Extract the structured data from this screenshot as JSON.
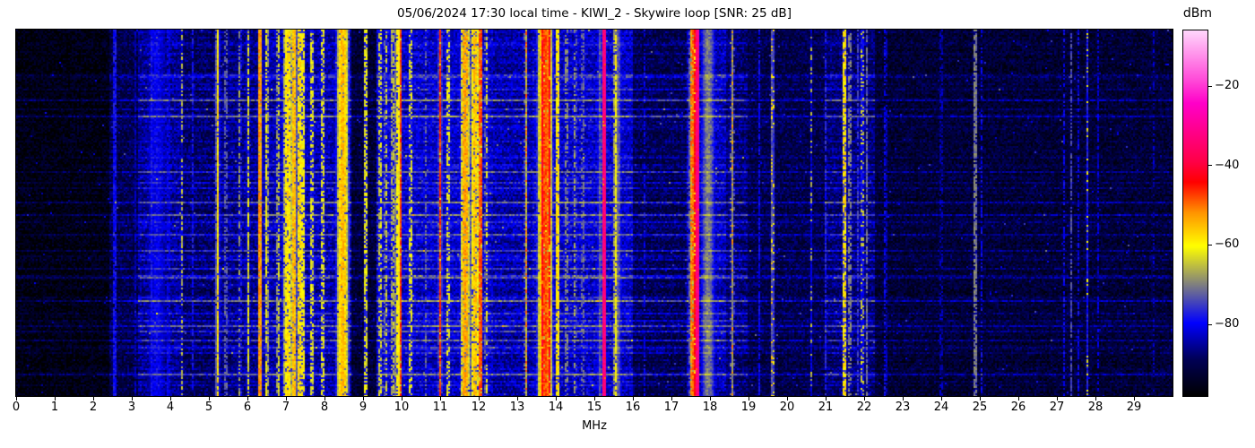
{
  "figure": {
    "title": "05/06/2024 17:30 local time - KIWI_2 - Skywire loop [SNR: 25 dB]",
    "background": "#ffffff"
  },
  "chart_data": {
    "type": "heatmap",
    "subtype": "radio-spectrogram-waterfall",
    "title": "05/06/2024 17:30 local time - KIWI_2 - Skywire loop [SNR: 25 dB]",
    "xlabel": "MHz",
    "x_range": [
      0,
      30
    ],
    "x_ticks": [
      0,
      1,
      2,
      3,
      4,
      5,
      6,
      7,
      8,
      9,
      10,
      11,
      12,
      13,
      14,
      15,
      16,
      17,
      18,
      19,
      20,
      21,
      22,
      23,
      24,
      25,
      26,
      27,
      28,
      29
    ],
    "grid": false,
    "legend": false,
    "colorbar": {
      "label": "dBm",
      "ticks": [
        -20,
        -40,
        -60,
        -80
      ],
      "tick_labels": [
        "−20",
        "−40",
        "−60",
        "−80"
      ],
      "vmin": -98,
      "vmax": -6,
      "colormap_stops": [
        [
          0.0,
          "#000000"
        ],
        [
          0.1,
          "#000055"
        ],
        [
          0.2,
          "#0000ff"
        ],
        [
          0.41,
          "#ffff00"
        ],
        [
          0.5,
          "#ff9600"
        ],
        [
          0.585,
          "#ff0000"
        ],
        [
          0.64,
          "#ff0046"
        ],
        [
          0.8,
          "#ff00c8"
        ],
        [
          0.86,
          "#ff46d7"
        ],
        [
          1.0,
          "#ffd7fc"
        ]
      ]
    },
    "noise_floor_dbm": [
      [
        0.0,
        2.4,
        -96
      ],
      [
        2.4,
        3.15,
        -90
      ],
      [
        3.15,
        4.3,
        -85
      ],
      [
        4.3,
        5.1,
        -88
      ],
      [
        5.1,
        6.4,
        -86
      ],
      [
        6.4,
        8.7,
        -84
      ],
      [
        8.7,
        9.35,
        -92
      ],
      [
        9.35,
        12.35,
        -82
      ],
      [
        12.35,
        13.4,
        -84
      ],
      [
        13.4,
        16.0,
        -82
      ],
      [
        16.0,
        17.4,
        -89
      ],
      [
        17.4,
        18.4,
        -83
      ],
      [
        18.4,
        19.0,
        -87
      ],
      [
        19.0,
        21.0,
        -90
      ],
      [
        21.0,
        22.3,
        -87
      ],
      [
        22.3,
        30.0,
        -92
      ]
    ],
    "signal_bands": [
      {
        "f": 2.56,
        "w": 0.02,
        "level": -79,
        "duty": 0.9
      },
      {
        "f": 3.1,
        "w": 0.02,
        "level": -84,
        "duty": 0.8
      },
      {
        "f": 3.65,
        "w": 0.45,
        "level": -80,
        "soft": true
      },
      {
        "f": 3.52,
        "w": 0.02,
        "level": -79,
        "duty": 0.9
      },
      {
        "f": 3.95,
        "w": 0.02,
        "level": -81,
        "duty": 0.8
      },
      {
        "f": 4.3,
        "w": 0.02,
        "level": -66,
        "duty": 0.55
      },
      {
        "f": 4.58,
        "w": 0.02,
        "level": -79,
        "duty": 0.7
      },
      {
        "f": 5.23,
        "w": 0.025,
        "level": -58,
        "duty": 0.92
      },
      {
        "f": 5.44,
        "w": 0.02,
        "level": -73,
        "duty": 0.6
      },
      {
        "f": 5.8,
        "w": 0.02,
        "level": -68,
        "duty": 0.5
      },
      {
        "f": 6.02,
        "w": 0.02,
        "level": -62,
        "duty": 0.7
      },
      {
        "f": 6.33,
        "w": 0.035,
        "level": -52,
        "duty": 0.9
      },
      {
        "f": 6.5,
        "w": 0.02,
        "level": -61,
        "duty": 0.7
      },
      {
        "f": 6.8,
        "w": 0.02,
        "level": -64,
        "duty": 0.6
      },
      {
        "f": 7.05,
        "w": 0.12,
        "level": -58,
        "duty": 0.85
      },
      {
        "f": 7.21,
        "w": 0.05,
        "level": -55,
        "duty": 0.9
      },
      {
        "f": 7.35,
        "w": 0.03,
        "level": -58,
        "duty": 0.8
      },
      {
        "f": 7.44,
        "w": 0.02,
        "level": -60,
        "duty": 0.7
      },
      {
        "f": 7.67,
        "w": 0.02,
        "level": -62,
        "duty": 0.6
      },
      {
        "f": 7.95,
        "w": 0.02,
        "level": -62,
        "duty": 0.6
      },
      {
        "f": 8.47,
        "w": 0.14,
        "level": -55,
        "duty": 0.95
      },
      {
        "f": 9.07,
        "w": 0.02,
        "level": -62,
        "duty": 0.6
      },
      {
        "f": 9.45,
        "w": 0.03,
        "level": -63,
        "duty": 0.5
      },
      {
        "f": 9.6,
        "w": 0.03,
        "level": -64,
        "duty": 0.5
      },
      {
        "f": 9.78,
        "w": 0.05,
        "level": -66,
        "duty": 0.6
      },
      {
        "f": 9.9,
        "w": 0.06,
        "level": -60,
        "duty": 0.7
      },
      {
        "f": 9.97,
        "w": 0.02,
        "level": -47,
        "duty": 0.9
      },
      {
        "f": 10.23,
        "w": 0.02,
        "level": -62,
        "duty": 0.5
      },
      {
        "f": 10.63,
        "w": 0.02,
        "level": -72,
        "duty": 0.5
      },
      {
        "f": 11.0,
        "w": 0.02,
        "level": -47,
        "duty": 0.92
      },
      {
        "f": 11.21,
        "w": 0.02,
        "level": -62,
        "duty": 0.5
      },
      {
        "f": 11.65,
        "w": 0.1,
        "level": -53,
        "duty": 0.9
      },
      {
        "f": 11.9,
        "w": 0.1,
        "level": -56,
        "duty": 0.85
      },
      {
        "f": 12.05,
        "w": 0.02,
        "level": -48,
        "duty": 0.9
      },
      {
        "f": 12.2,
        "w": 0.02,
        "level": -62,
        "duty": 0.5
      },
      {
        "f": 13.23,
        "w": 0.02,
        "level": -50,
        "duty": 0.35
      },
      {
        "f": 13.72,
        "w": 0.16,
        "level": -48,
        "duty": 0.95
      },
      {
        "f": 13.65,
        "w": 0.02,
        "level": -42,
        "duty": 0.9
      },
      {
        "f": 13.84,
        "w": 0.02,
        "level": -43,
        "duty": 0.9
      },
      {
        "f": 14.05,
        "w": 0.03,
        "level": -58,
        "duty": 0.8
      },
      {
        "f": 14.28,
        "w": 0.02,
        "level": -70,
        "duty": 0.6
      },
      {
        "f": 14.5,
        "w": 0.02,
        "level": -68,
        "duty": 0.5
      },
      {
        "f": 14.7,
        "w": 0.02,
        "level": -72,
        "duty": 0.5
      },
      {
        "f": 15.15,
        "w": 0.1,
        "level": -73,
        "soft": true
      },
      {
        "f": 15.26,
        "w": 0.02,
        "level": -33,
        "duty": 0.97
      },
      {
        "f": 15.55,
        "w": 0.025,
        "level": -60,
        "duty": 0.8
      },
      {
        "f": 15.6,
        "w": 0.15,
        "level": -72,
        "soft": true
      },
      {
        "f": 16.3,
        "w": 0.02,
        "level": -80,
        "duty": 0.5
      },
      {
        "f": 17.55,
        "w": 0.06,
        "level": -50,
        "duty": 0.8
      },
      {
        "f": 17.62,
        "w": 0.02,
        "level": -44,
        "duty": 0.85
      },
      {
        "f": 17.68,
        "w": 0.02,
        "level": -32,
        "duty": 0.97
      },
      {
        "f": 17.95,
        "w": 0.25,
        "level": -70,
        "soft": true
      },
      {
        "f": 18.58,
        "w": 0.025,
        "level": -53,
        "duty": 0.2
      },
      {
        "f": 19.28,
        "w": 0.02,
        "level": -80,
        "duty": 0.8
      },
      {
        "f": 19.62,
        "w": 0.02,
        "level": -57,
        "duty": 0.18
      },
      {
        "f": 20.63,
        "w": 0.02,
        "level": -66,
        "duty": 0.25
      },
      {
        "f": 21.0,
        "w": 0.02,
        "level": -77,
        "duty": 0.7
      },
      {
        "f": 21.49,
        "w": 0.04,
        "level": -58,
        "duty": 0.65
      },
      {
        "f": 21.63,
        "w": 0.02,
        "level": -70,
        "duty": 0.6
      },
      {
        "f": 21.84,
        "w": 0.03,
        "level": -76,
        "duty": 0.7
      },
      {
        "f": 21.95,
        "w": 0.02,
        "level": -64,
        "duty": 0.3
      },
      {
        "f": 22.07,
        "w": 0.015,
        "level": -72,
        "duty": 0.8
      },
      {
        "f": 22.55,
        "w": 0.02,
        "level": -80,
        "duty": 0.6
      },
      {
        "f": 24.0,
        "w": 0.02,
        "level": -84,
        "duty": 0.5
      },
      {
        "f": 24.88,
        "w": 0.02,
        "level": -70,
        "duty": 0.8
      },
      {
        "f": 25.05,
        "w": 0.02,
        "level": -80,
        "duty": 0.5
      },
      {
        "f": 27.19,
        "w": 0.02,
        "level": -80,
        "duty": 0.6
      },
      {
        "f": 27.37,
        "w": 0.02,
        "level": -74,
        "duty": 0.7
      },
      {
        "f": 27.56,
        "w": 0.02,
        "level": -80,
        "duty": 0.6
      },
      {
        "f": 27.79,
        "w": 0.02,
        "level": -62,
        "duty": 0.15
      },
      {
        "f": 28.07,
        "w": 0.02,
        "level": -82,
        "duty": 0.6
      },
      {
        "f": 29.5,
        "w": 0.02,
        "level": -83,
        "duty": 0.5
      }
    ],
    "texture": {
      "rows": 205,
      "cols": 645,
      "row_streak_chance": 0.09,
      "row_streak_gain_db": [
        5,
        13
      ],
      "row_jitter_db": 2.5,
      "pixel_noise_db": 9,
      "band_noise_db": 6,
      "gap_drop_db": 16,
      "speckle_chance": 0.004,
      "speckle_gain_db": 9,
      "seed": 20240506
    }
  }
}
